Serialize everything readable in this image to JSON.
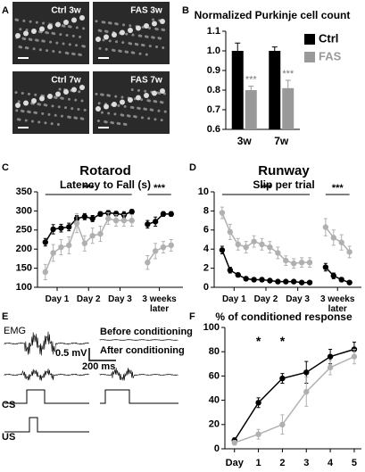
{
  "panel_letters": [
    "A",
    "B",
    "C",
    "D",
    "E",
    "F"
  ],
  "images": {
    "labels": [
      "Ctrl 3w",
      "FAS 3w",
      "Ctrl 7w",
      "FAS 7w"
    ]
  },
  "panel_e": {
    "labels": [
      "EMG",
      "0.5 mV",
      "200 ms",
      "Before conditioning",
      "After conditioning",
      "CS",
      "US"
    ]
  },
  "chart_data": [
    {
      "type": "bar",
      "title": "Normalized Purkinje cell count",
      "categories": [
        "3w",
        "7w"
      ],
      "series": [
        {
          "name": "Ctrl",
          "color": "#000000",
          "values": [
            1.0,
            1.0
          ],
          "errors": [
            0.04,
            0.02
          ]
        },
        {
          "name": "FAS",
          "color": "#999999",
          "values": [
            0.8,
            0.81
          ],
          "errors": [
            0.02,
            0.04
          ]
        }
      ],
      "ylim": [
        0.6,
        1.1
      ],
      "yticks": [
        0.6,
        0.7,
        0.8,
        0.9,
        {
          "value": 1,
          "label": "1.0"
        },
        1.1
      ],
      "annotations": [
        "***",
        "***"
      ],
      "legend": "upper right"
    },
    {
      "type": "line",
      "title": "Rotarod",
      "subtitle": "Latency to Fall (s)",
      "x": [
        1,
        2,
        3,
        4,
        5,
        6,
        7,
        8,
        9,
        10,
        11,
        12,
        13,
        14,
        15,
        16,
        17
      ],
      "series": [
        {
          "name": "Ctrl",
          "color": "#000000",
          "values": [
            218,
            252,
            255,
            258,
            280,
            285,
            280,
            292,
            295,
            293,
            290,
            298,
            null,
            265,
            272,
            292,
            292
          ],
          "errors": [
            10,
            12,
            10,
            10,
            8,
            8,
            8,
            6,
            6,
            6,
            8,
            6,
            null,
            10,
            12,
            6,
            6
          ]
        },
        {
          "name": "FAS",
          "color": "#b0b0b0",
          "values": [
            140,
            190,
            205,
            210,
            268,
            215,
            235,
            240,
            280,
            275,
            275,
            275,
            null,
            165,
            195,
            205,
            210
          ],
          "errors": [
            20,
            22,
            20,
            22,
            25,
            20,
            20,
            20,
            15,
            15,
            15,
            15,
            null,
            18,
            20,
            15,
            15
          ]
        }
      ],
      "xlim": [
        0,
        18.5
      ],
      "ylim": [
        100,
        350
      ],
      "yticks": [
        100,
        150,
        200,
        250,
        300,
        350
      ],
      "xticks": [
        {
          "value": 2.5,
          "label": "Day 1"
        },
        {
          "value": 6.5,
          "label": "Day 2"
        },
        {
          "value": 10.5,
          "label": "Day 3"
        },
        {
          "value": 15.5,
          "label": "3 weeks later"
        }
      ],
      "annotations": [
        "***",
        "***"
      ]
    },
    {
      "type": "line",
      "title": "Runway",
      "subtitle": "Slip per trial",
      "x": [
        1,
        2,
        3,
        4,
        5,
        6,
        7,
        8,
        9,
        10,
        11,
        12,
        13,
        14,
        15,
        16,
        17
      ],
      "series": [
        {
          "name": "Ctrl",
          "color": "#000000",
          "values": [
            3.9,
            1.8,
            1.3,
            0.9,
            0.8,
            0.8,
            0.7,
            0.6,
            0.6,
            0.6,
            0.5,
            0.5,
            null,
            2.1,
            1.2,
            0.8,
            0.5
          ],
          "errors": [
            0.4,
            0.3,
            0.2,
            0.1,
            0.1,
            0.1,
            0.1,
            0.1,
            0.1,
            0.1,
            0.1,
            0.1,
            null,
            0.4,
            0.3,
            0.2,
            0.1
          ]
        },
        {
          "name": "FAS",
          "color": "#b0b0b0",
          "values": [
            7.8,
            5.8,
            4.5,
            4.2,
            4.8,
            4.5,
            4.2,
            3.6,
            2.8,
            2.5,
            2.6,
            2.6,
            null,
            6.3,
            5.2,
            4.7,
            3.7
          ],
          "errors": [
            0.6,
            0.8,
            0.6,
            0.6,
            0.6,
            0.6,
            0.6,
            0.6,
            0.5,
            0.5,
            0.5,
            0.5,
            null,
            0.9,
            0.8,
            0.8,
            0.6
          ]
        }
      ],
      "xlim": [
        0,
        18.5
      ],
      "ylim": [
        0,
        10
      ],
      "yticks": [
        0,
        2,
        4,
        6,
        8,
        10
      ],
      "xticks": [
        {
          "value": 2.5,
          "label": "Day 1"
        },
        {
          "value": 6.5,
          "label": "Day 2"
        },
        {
          "value": 10.5,
          "label": "Day 3"
        },
        {
          "value": 15.5,
          "label": "3 weeks later"
        }
      ],
      "annotations": [
        "***",
        "***"
      ]
    },
    {
      "type": "line",
      "title": "% of conditioned response",
      "x": [
        0,
        1,
        2,
        3,
        4,
        5
      ],
      "series": [
        {
          "name": "Ctrl",
          "color": "#000000",
          "values": [
            7,
            38,
            58,
            63,
            76,
            82
          ],
          "errors": [
            2,
            4,
            4,
            9,
            6,
            6
          ]
        },
        {
          "name": "FAS",
          "color": "#b0b0b0",
          "values": [
            5,
            12,
            20,
            47,
            67,
            76
          ],
          "errors": [
            2,
            4,
            8,
            12,
            6,
            6
          ]
        }
      ],
      "xlim": [
        -0.4,
        5.3
      ],
      "ylim": [
        0,
        100
      ],
      "yticks": [
        0,
        20,
        40,
        60,
        80,
        100
      ],
      "xticks": [
        {
          "value": 0,
          "label": "Day"
        },
        1,
        2,
        3,
        4,
        5
      ],
      "annotations": [
        "*",
        "*"
      ]
    }
  ]
}
